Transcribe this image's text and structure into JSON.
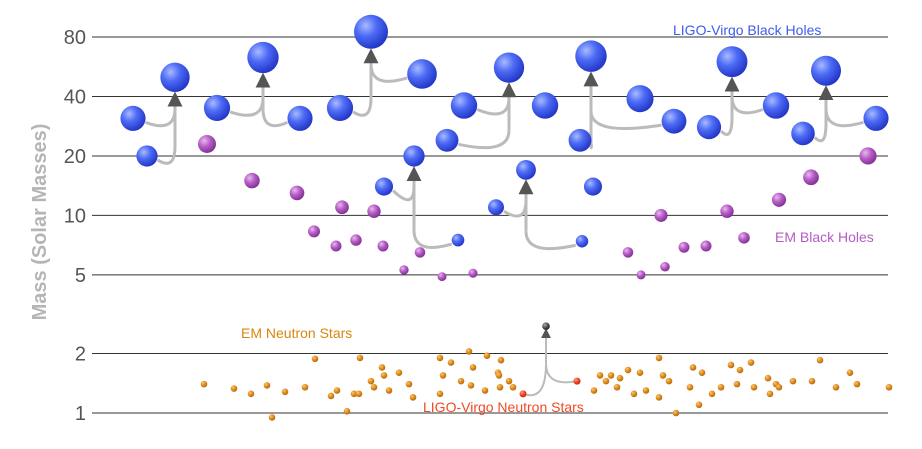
{
  "chart_data": {
    "type": "scatter",
    "title": "",
    "xlabel": "",
    "ylabel": "Mass (Solar Masses)",
    "yscale": "log",
    "ylim": [
      0.9,
      100
    ],
    "yticks": [
      1,
      2,
      5,
      10,
      20,
      40,
      80
    ],
    "ytick_labels": [
      "1",
      "2",
      "5",
      "10",
      "20",
      "40",
      "80"
    ],
    "grid": "horizontal",
    "legend_placement": "inline-labels",
    "colors": {
      "ligo_bh": "#3c5cf0",
      "em_bh": "#b45cc4",
      "em_ns": "#e2901e",
      "ligo_ns": "#f04a26",
      "arrow": "#bbbbbb",
      "grid": "#333333"
    },
    "series": [
      {
        "name": "LIGO-Virgo Black Holes",
        "key": "ligo_bh",
        "points": [
          {
            "x": 1,
            "y": 31
          },
          {
            "x": 2,
            "y": 20
          },
          {
            "x": 3,
            "y": 50
          },
          {
            "x": 4,
            "y": 35
          },
          {
            "x": 5,
            "y": 31
          },
          {
            "x": 6,
            "y": 63
          },
          {
            "x": 7,
            "y": 35
          },
          {
            "x": 8,
            "y": 85
          },
          {
            "x": 9,
            "y": 52
          },
          {
            "x": 10,
            "y": 14
          },
          {
            "x": 11,
            "y": 20
          },
          {
            "x": 12,
            "y": 7.5
          },
          {
            "x": 13,
            "y": 24
          },
          {
            "x": 14,
            "y": 36
          },
          {
            "x": 15,
            "y": 56
          },
          {
            "x": 16,
            "y": 11
          },
          {
            "x": 17,
            "y": 17
          },
          {
            "x": 18,
            "y": 36
          },
          {
            "x": 19,
            "y": 7.4
          },
          {
            "x": 20,
            "y": 24
          },
          {
            "x": 21,
            "y": 14
          },
          {
            "x": 22,
            "y": 64
          },
          {
            "x": 23,
            "y": 39
          },
          {
            "x": 24,
            "y": 30
          },
          {
            "x": 25,
            "y": 28
          },
          {
            "x": 26,
            "y": 60
          },
          {
            "x": 27,
            "y": 36
          },
          {
            "x": 28,
            "y": 26
          },
          {
            "x": 29,
            "y": 54
          },
          {
            "x": 30,
            "y": 31
          }
        ],
        "mergers": [
          {
            "from": [
              0,
              1
            ],
            "to": 2
          },
          {
            "from": [
              3,
              4
            ],
            "to": 5
          },
          {
            "from": [
              6,
              8
            ],
            "to": 7
          },
          {
            "from": [
              11,
              9
            ],
            "to": 10
          },
          {
            "from": [
              12,
              13
            ],
            "to": 14
          },
          {
            "from": [
              15,
              18
            ],
            "to": 16
          },
          {
            "from": [
              19,
              23
            ],
            "to": 21
          },
          {
            "from": [
              24,
              26
            ],
            "to": 25
          },
          {
            "from": [
              27,
              29
            ],
            "to": 28
          }
        ]
      },
      {
        "name": "EM Black Holes",
        "key": "em_bh",
        "points": [
          {
            "x": 1,
            "y": 23
          },
          {
            "x": 2,
            "y": 15
          },
          {
            "x": 3,
            "y": 13
          },
          {
            "x": 4,
            "y": 8.3
          },
          {
            "x": 5,
            "y": 7
          },
          {
            "x": 6,
            "y": 11
          },
          {
            "x": 7,
            "y": 7.5
          },
          {
            "x": 8,
            "y": 10.5
          },
          {
            "x": 9,
            "y": 7
          },
          {
            "x": 10,
            "y": 5.3
          },
          {
            "x": 11,
            "y": 6.5
          },
          {
            "x": 12,
            "y": 4.9
          },
          {
            "x": 13,
            "y": 5.1
          },
          {
            "x": 14,
            "y": 6.5
          },
          {
            "x": 15,
            "y": 5
          },
          {
            "x": 16,
            "y": 10
          },
          {
            "x": 17,
            "y": 5.5
          },
          {
            "x": 18,
            "y": 6.9
          },
          {
            "x": 19,
            "y": 7
          },
          {
            "x": 20,
            "y": 10.5
          },
          {
            "x": 21,
            "y": 7.7
          },
          {
            "x": 22,
            "y": 12
          },
          {
            "x": 23,
            "y": 15.6
          },
          {
            "x": 24,
            "y": 20
          }
        ]
      },
      {
        "name": "EM Neutron Stars",
        "key": "em_ns",
        "values": [
          1.4,
          1.33,
          1.25,
          1.38,
          1.28,
          0.95,
          1.35,
          1.22,
          1.88,
          1.25,
          1.3,
          1.02,
          1.9,
          1.45,
          1.25,
          1.55,
          1.7,
          1.35,
          1.3,
          1.6,
          1.4,
          1.2,
          1.9,
          1.55,
          1.25,
          1.8,
          1.45,
          2.05,
          1.7,
          1.38,
          1.3,
          1.95,
          1.6,
          1.35,
          1.55,
          1.85,
          1.45,
          1.35,
          1.55,
          1.3,
          1.45,
          1.55,
          1.65,
          1.35,
          1.5,
          1.25,
          1.6,
          1.9,
          1.3,
          1.2,
          1.55,
          1.0,
          1.45,
          1.35,
          1.7,
          1.1,
          1.6,
          1.25,
          1.35,
          1.75,
          1.65,
          1.4,
          1.8,
          1.35,
          1.5,
          1.25,
          1.4,
          1.35,
          1.45,
          1.45,
          1.85,
          1.35,
          1.6,
          1.4,
          1.35
        ]
      },
      {
        "name": "LIGO-Virgo Neutron Stars",
        "key": "ligo_ns",
        "points": [
          {
            "x": 1,
            "y": 1.25
          },
          {
            "x": 2,
            "y": 1.45
          },
          {
            "x": 3,
            "y": 2.75
          }
        ],
        "mergers": [
          {
            "from": [
              0,
              1
            ],
            "to": 2
          }
        ]
      }
    ]
  }
}
